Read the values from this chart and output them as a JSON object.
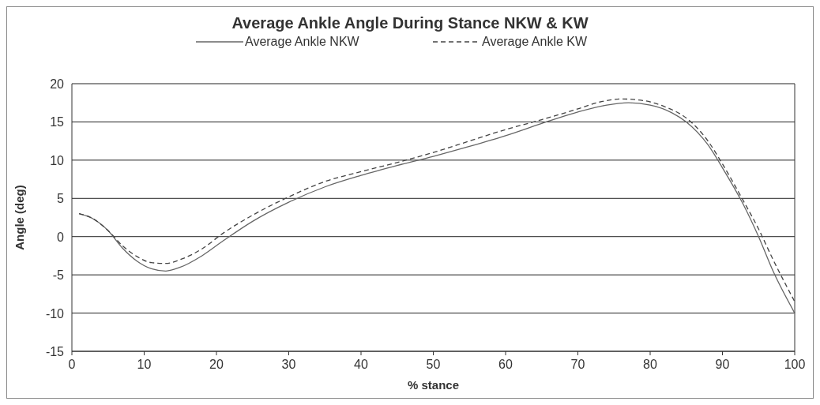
{
  "chart_data": {
    "type": "line",
    "title": "Average Ankle Angle During Stance NKW & KW",
    "xlabel": "% stance",
    "ylabel": "Angle (deg)",
    "xlim": [
      0,
      100
    ],
    "xticks": [
      0,
      10,
      20,
      30,
      40,
      50,
      60,
      70,
      80,
      90,
      100
    ],
    "ylim": [
      -15,
      20
    ],
    "yticks": [
      -15,
      -10,
      -5,
      0,
      5,
      10,
      15,
      20
    ],
    "grid": "y",
    "legend": "top",
    "series": [
      {
        "name": "Average Ankle NKW",
        "color": "#666666",
        "line_style": "solid",
        "x": [
          1,
          3,
          5,
          7,
          9,
          11,
          13,
          15,
          18,
          21,
          25,
          30,
          35,
          40,
          45,
          50,
          55,
          60,
          65,
          70,
          74,
          77,
          80,
          83,
          85,
          88,
          90,
          93,
          95,
          97,
          100
        ],
        "values": [
          3,
          2.3,
          0.8,
          -1.5,
          -3.2,
          -4.2,
          -4.5,
          -4,
          -2.5,
          -0.5,
          2,
          4.5,
          6.5,
          8,
          9.3,
          10.5,
          11.8,
          13.2,
          14.8,
          16.3,
          17.2,
          17.5,
          17.2,
          16.2,
          15,
          12,
          9,
          4,
          0,
          -4.5,
          -10
        ]
      },
      {
        "name": "Average Ankle KW",
        "color": "#444444",
        "line_style": "dashed",
        "x": [
          1,
          3,
          5,
          7,
          9,
          11,
          13,
          15,
          18,
          21,
          25,
          30,
          35,
          40,
          45,
          50,
          55,
          60,
          65,
          70,
          73,
          76,
          79,
          82,
          85,
          88,
          90,
          93,
          95,
          97,
          100
        ],
        "values": [
          3,
          2.3,
          0.8,
          -1.2,
          -2.6,
          -3.4,
          -3.5,
          -3,
          -1.6,
          0.5,
          2.8,
          5.2,
          7.2,
          8.5,
          9.7,
          11,
          12.5,
          14,
          15.3,
          16.7,
          17.6,
          18,
          17.8,
          17,
          15.5,
          12.5,
          9.5,
          4.5,
          1,
          -3,
          -8.5
        ]
      }
    ]
  }
}
